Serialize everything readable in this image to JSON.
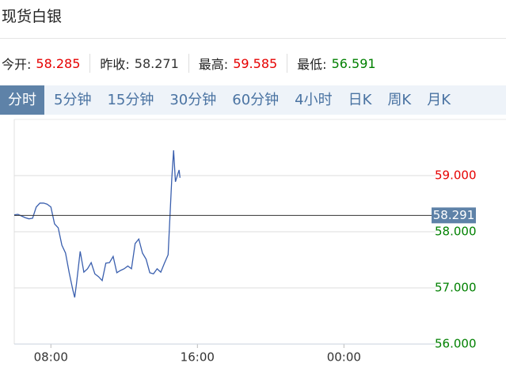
{
  "header": {
    "title": "现货白银"
  },
  "stats": [
    {
      "label": "今开:",
      "value": "58.285",
      "color": "#e60000"
    },
    {
      "label": "昨收:",
      "value": "58.271",
      "color": "#333333"
    },
    {
      "label": "最高:",
      "value": "59.585",
      "color": "#e60000"
    },
    {
      "label": "最低:",
      "value": "56.591",
      "color": "#008000"
    }
  ],
  "tabs": [
    {
      "label": "分时",
      "active": true
    },
    {
      "label": "5分钟",
      "active": false
    },
    {
      "label": "15分钟",
      "active": false
    },
    {
      "label": "30分钟",
      "active": false
    },
    {
      "label": "60分钟",
      "active": false
    },
    {
      "label": "4小时",
      "active": false
    },
    {
      "label": "日K",
      "active": false
    },
    {
      "label": "周K",
      "active": false
    },
    {
      "label": "月K",
      "active": false
    }
  ],
  "chart_data": {
    "type": "line",
    "color": "#3a5fae",
    "x": [
      6.0,
      6.2,
      6.4,
      6.6,
      6.8,
      7.0,
      7.2,
      7.4,
      7.6,
      7.8,
      8.0,
      8.2,
      8.4,
      8.6,
      8.8,
      9.0,
      9.2,
      9.3,
      9.4,
      9.6,
      9.8,
      10.0,
      10.2,
      10.4,
      10.6,
      10.8,
      11.0,
      11.2,
      11.4,
      11.6,
      11.8,
      12.0,
      12.2,
      12.4,
      12.6,
      12.8,
      13.0,
      13.2,
      13.4,
      13.6,
      13.8,
      14.0,
      14.2,
      14.4,
      14.6,
      14.7,
      14.8,
      15.0,
      15.05
    ],
    "values": [
      58.3,
      58.31,
      58.28,
      58.25,
      58.23,
      58.24,
      58.44,
      58.51,
      58.51,
      58.49,
      58.44,
      58.14,
      58.07,
      57.76,
      57.62,
      57.27,
      56.96,
      56.83,
      57.08,
      57.65,
      57.28,
      57.34,
      57.45,
      57.25,
      57.2,
      57.13,
      57.44,
      57.45,
      57.56,
      57.27,
      57.31,
      57.34,
      57.39,
      57.34,
      57.79,
      57.87,
      57.62,
      57.51,
      57.27,
      57.25,
      57.34,
      57.28,
      57.44,
      57.59,
      58.94,
      59.45,
      58.89,
      59.1,
      58.96
    ],
    "xlim": [
      6,
      29
    ],
    "xticks": [
      {
        "value": 8,
        "label": "08:00"
      },
      {
        "value": 16,
        "label": "16:00"
      },
      {
        "value": 24,
        "label": "00:00"
      }
    ],
    "ylim": [
      56,
      60
    ],
    "yticks": [
      {
        "value": 56,
        "label": "56.000"
      },
      {
        "value": 57,
        "label": "57.000"
      },
      {
        "value": 58,
        "label": "58.000"
      },
      {
        "value": 59,
        "label": "59.000"
      }
    ],
    "ytick_colors": [
      "#008000",
      "#008000",
      "#008000",
      "#e60000"
    ],
    "price_line": {
      "value": 58.291,
      "label": "58.291",
      "color": "#333333",
      "label_bg": "#5e82a8"
    },
    "grid": true
  }
}
